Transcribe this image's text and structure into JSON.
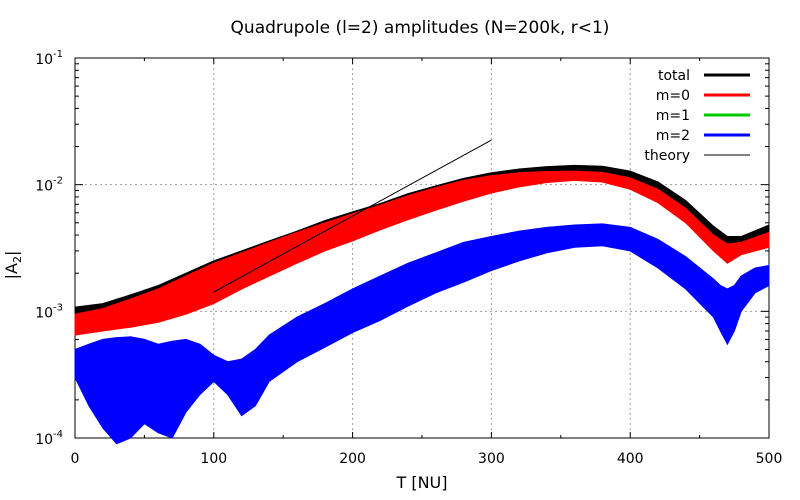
{
  "chart_data": {
    "type": "line",
    "title": "Quadrupole (l=2) amplitudes (N=200k, r<1)",
    "xlabel": "T [NU]",
    "ylabel": "|A2|",
    "ylabel_main": "|A",
    "ylabel_sub": "2",
    "ylabel_end": "|",
    "xlim": [
      0,
      500
    ],
    "ylim": [
      0.0001,
      0.1
    ],
    "yscale": "log",
    "grid": true,
    "legend_position": "top-right",
    "xticks": [
      "0",
      "100",
      "200",
      "300",
      "400",
      "500"
    ],
    "yticks": [
      {
        "base": "10",
        "exp": "-4"
      },
      {
        "base": "10",
        "exp": "-3"
      },
      {
        "base": "10",
        "exp": "-2"
      },
      {
        "base": "10",
        "exp": "-1"
      }
    ],
    "series": [
      {
        "name": "total",
        "color": "#000000",
        "x": [
          0,
          20,
          40,
          60,
          80,
          100,
          120,
          140,
          160,
          180,
          200,
          220,
          240,
          260,
          280,
          300,
          320,
          340,
          360,
          380,
          400,
          420,
          440,
          460,
          470,
          480,
          500
        ],
        "upper": [
          0.00108,
          0.00115,
          0.00135,
          0.0016,
          0.002,
          0.0025,
          0.003,
          0.0036,
          0.0043,
          0.0052,
          0.0061,
          0.0071,
          0.0085,
          0.0098,
          0.0112,
          0.0124,
          0.0133,
          0.0139,
          0.0142,
          0.014,
          0.0128,
          0.0105,
          0.0075,
          0.0047,
          0.0039,
          0.0039,
          0.0048
        ],
        "lower": [
          0.00092,
          0.0009,
          0.00095,
          0.00105,
          0.0012,
          0.0015,
          0.00185,
          0.0023,
          0.0029,
          0.0035,
          0.0042,
          0.0051,
          0.0062,
          0.0075,
          0.0088,
          0.0102,
          0.0113,
          0.0121,
          0.0126,
          0.0124,
          0.011,
          0.0085,
          0.006,
          0.0038,
          0.0033,
          0.0034,
          0.0037
        ]
      },
      {
        "name": "m=0",
        "color": "#ff0000",
        "x": [
          0,
          20,
          40,
          60,
          80,
          100,
          120,
          140,
          160,
          180,
          200,
          220,
          240,
          260,
          280,
          300,
          320,
          340,
          360,
          380,
          400,
          420,
          440,
          460,
          470,
          480,
          500
        ],
        "upper": [
          0.00095,
          0.00105,
          0.00125,
          0.0015,
          0.0019,
          0.0024,
          0.0029,
          0.0035,
          0.0042,
          0.005,
          0.0059,
          0.0069,
          0.0082,
          0.0095,
          0.0108,
          0.0118,
          0.0124,
          0.0127,
          0.0128,
          0.0125,
          0.0113,
          0.0092,
          0.0065,
          0.004,
          0.0034,
          0.0035,
          0.0042
        ],
        "lower": [
          0.00065,
          0.0007,
          0.00075,
          0.00082,
          0.00095,
          0.00115,
          0.0015,
          0.0019,
          0.0024,
          0.003,
          0.0036,
          0.0044,
          0.0053,
          0.0063,
          0.0074,
          0.0086,
          0.0096,
          0.0104,
          0.0108,
          0.0105,
          0.0092,
          0.0072,
          0.005,
          0.003,
          0.0024,
          0.0028,
          0.0032
        ]
      },
      {
        "name": "m=1",
        "color": "#00cc00",
        "x": [],
        "upper": [],
        "lower": []
      },
      {
        "name": "m=2",
        "color": "#0000ff",
        "x": [
          0,
          10,
          20,
          30,
          40,
          50,
          60,
          70,
          80,
          90,
          100,
          110,
          120,
          130,
          140,
          160,
          180,
          200,
          220,
          240,
          260,
          280,
          300,
          320,
          340,
          360,
          380,
          400,
          420,
          440,
          460,
          465,
          470,
          475,
          480,
          490,
          500
        ],
        "upper": [
          0.0005,
          0.00055,
          0.0006,
          0.00062,
          0.00063,
          0.0006,
          0.00055,
          0.00058,
          0.0006,
          0.00055,
          0.00045,
          0.0004,
          0.00042,
          0.0005,
          0.00065,
          0.0009,
          0.00115,
          0.0015,
          0.0019,
          0.0024,
          0.0029,
          0.0035,
          0.0039,
          0.0043,
          0.0046,
          0.0048,
          0.0049,
          0.0046,
          0.0037,
          0.0027,
          0.0018,
          0.0016,
          0.0015,
          0.0016,
          0.0019,
          0.0022,
          0.0023
        ],
        "lower": [
          0.0003,
          0.00018,
          0.00012,
          9e-05,
          0.0001,
          0.00013,
          0.00011,
          0.0001,
          0.00016,
          0.00022,
          0.00028,
          0.00022,
          0.00015,
          0.00018,
          0.00028,
          0.0004,
          0.00052,
          0.00068,
          0.00085,
          0.0011,
          0.0014,
          0.0017,
          0.0021,
          0.0025,
          0.0029,
          0.0032,
          0.0033,
          0.003,
          0.0022,
          0.0015,
          0.0009,
          0.0007,
          0.00055,
          0.0007,
          0.001,
          0.0014,
          0.0016
        ]
      },
      {
        "name": "theory",
        "color": "#000000",
        "x": [
          100,
          300
        ],
        "y": [
          0.00142,
          0.0225
        ]
      }
    ]
  }
}
